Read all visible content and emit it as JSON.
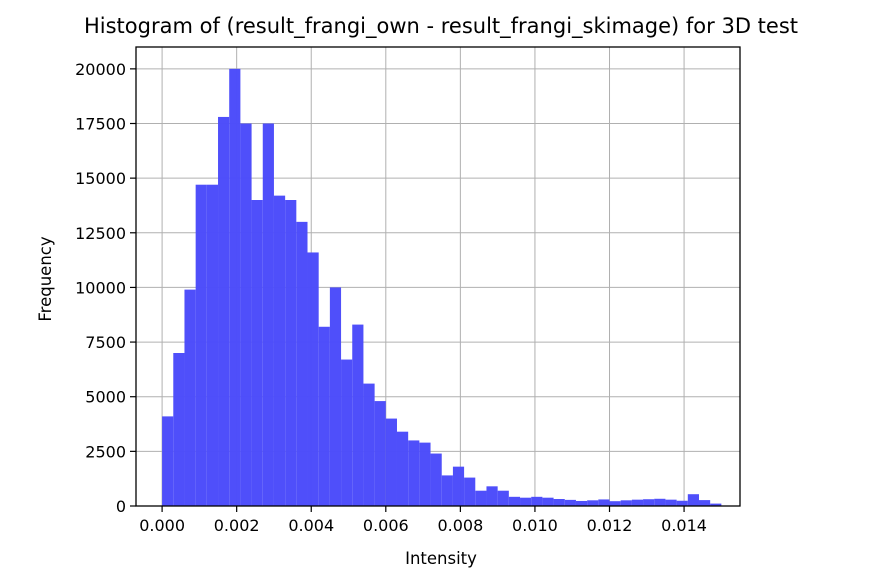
{
  "chart_data": {
    "type": "bar",
    "title": "Histogram of (result_frangi_own - result_frangi_skimage) for 3D test",
    "xlabel": "Intensity",
    "ylabel": "Frequency",
    "xlim": [
      -0.0007,
      0.0155
    ],
    "ylim": [
      0,
      21000
    ],
    "grid": true,
    "bar_color": "#4b4bfa",
    "bin_width": 0.0003,
    "bin_start": 0.0,
    "values": [
      4100,
      7000,
      9900,
      14700,
      14700,
      17800,
      20000,
      17500,
      14000,
      17500,
      14200,
      14000,
      13000,
      11600,
      8200,
      10000,
      6700,
      8300,
      5600,
      4800,
      4000,
      3400,
      3000,
      2900,
      2400,
      1400,
      1800,
      1300,
      700,
      900,
      700,
      420,
      380,
      420,
      380,
      320,
      280,
      230,
      260,
      300,
      220,
      260,
      290,
      310,
      330,
      290,
      240,
      540,
      270,
      110
    ],
    "xticks": [
      "0.000",
      "0.002",
      "0.004",
      "0.006",
      "0.008",
      "0.010",
      "0.012",
      "0.014"
    ],
    "xtick_values": [
      0.0,
      0.002,
      0.004,
      0.006,
      0.008,
      0.01,
      0.012,
      0.014
    ],
    "yticks": [
      "0",
      "2500",
      "5000",
      "7500",
      "10000",
      "12500",
      "15000",
      "17500",
      "20000"
    ],
    "ytick_values": [
      0,
      2500,
      5000,
      7500,
      10000,
      12500,
      15000,
      17500,
      20000
    ]
  }
}
